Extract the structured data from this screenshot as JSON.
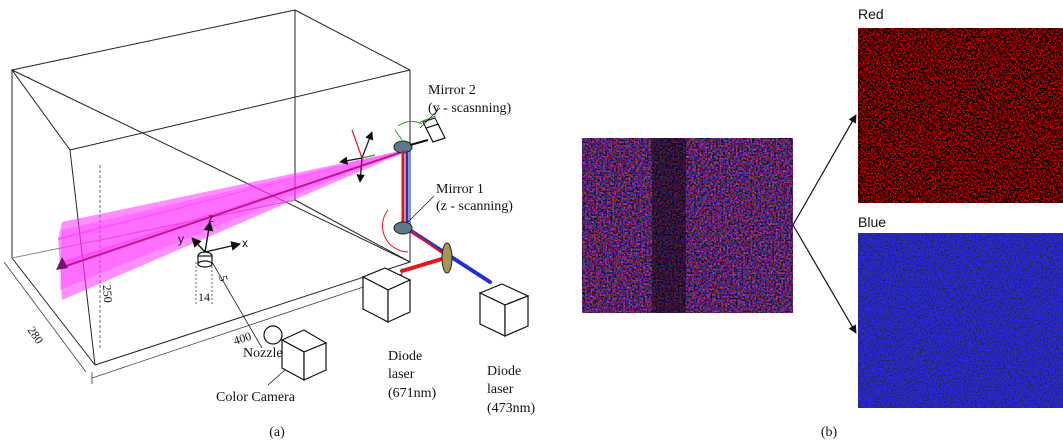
{
  "panel_a": {
    "caption": "(a)",
    "mirror2": {
      "line1": "Mirror 2",
      "line2": "(y - scasnning)"
    },
    "mirror1": {
      "line1": "Mirror 1",
      "line2": "(z - scanning)"
    },
    "axes": {
      "x": "x",
      "y": "y",
      "z": "z"
    },
    "dims": {
      "width": "400",
      "depth": "280",
      "height": "250",
      "d14": "14",
      "d5": "5"
    },
    "nozzle": "Nozzle",
    "camera": "Color Camera",
    "laser_red": {
      "line1": "Diode",
      "line2": "laser",
      "line3": "(671nm)"
    },
    "laser_blue": {
      "line1": "Diode",
      "line2": "laser",
      "line3": "(473nm)"
    }
  },
  "panel_b": {
    "caption": "(b)",
    "red_title": "Red",
    "blue_title": "Blue"
  },
  "colors": {
    "sheet": "#ff33ff",
    "red_beam": "#e8141c",
    "blue_beam": "#1e2fd6",
    "mirror": "#5c7a8a"
  }
}
